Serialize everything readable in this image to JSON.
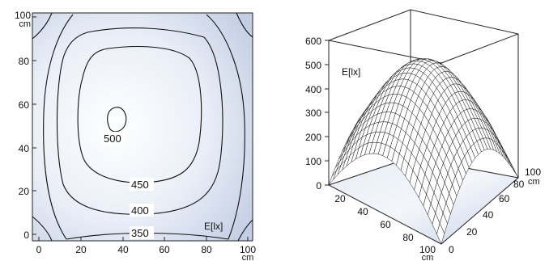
{
  "chart_data": [
    {
      "type": "contour",
      "x_ticks": [
        "0",
        "20",
        "40",
        "60",
        "80",
        "100"
      ],
      "y_ticks": [
        "0",
        "20",
        "40",
        "60",
        "80",
        "100"
      ],
      "x_unit": "cm",
      "y_unit": "cm",
      "xlim": [
        0,
        100
      ],
      "ylim": [
        0,
        100
      ],
      "z_label": "E[lx]",
      "contour_levels": [
        {
          "value": 500,
          "label": "500"
        },
        {
          "value": 450,
          "label": "450"
        },
        {
          "value": 400,
          "label": "400"
        },
        {
          "value": 350,
          "label": "350"
        }
      ],
      "peak": {
        "x": 38,
        "y": 50
      }
    },
    {
      "type": "surface",
      "z_label": "E[lx]",
      "z_ticks": [
        "0",
        "100",
        "200",
        "300",
        "400",
        "500",
        "600"
      ],
      "x_ticks": [
        "0",
        "20",
        "40",
        "60",
        "80",
        "100"
      ],
      "y_ticks": [
        "0",
        "20",
        "40",
        "60",
        "80",
        "100"
      ],
      "x_unit": "cm",
      "y_unit": "cm",
      "zlim": [
        0,
        600
      ],
      "xlim": [
        0,
        100
      ],
      "ylim": [
        0,
        100
      ],
      "mesh_size": 25,
      "peak_value": 540,
      "edge_value": 240,
      "corner_value": 0
    }
  ]
}
